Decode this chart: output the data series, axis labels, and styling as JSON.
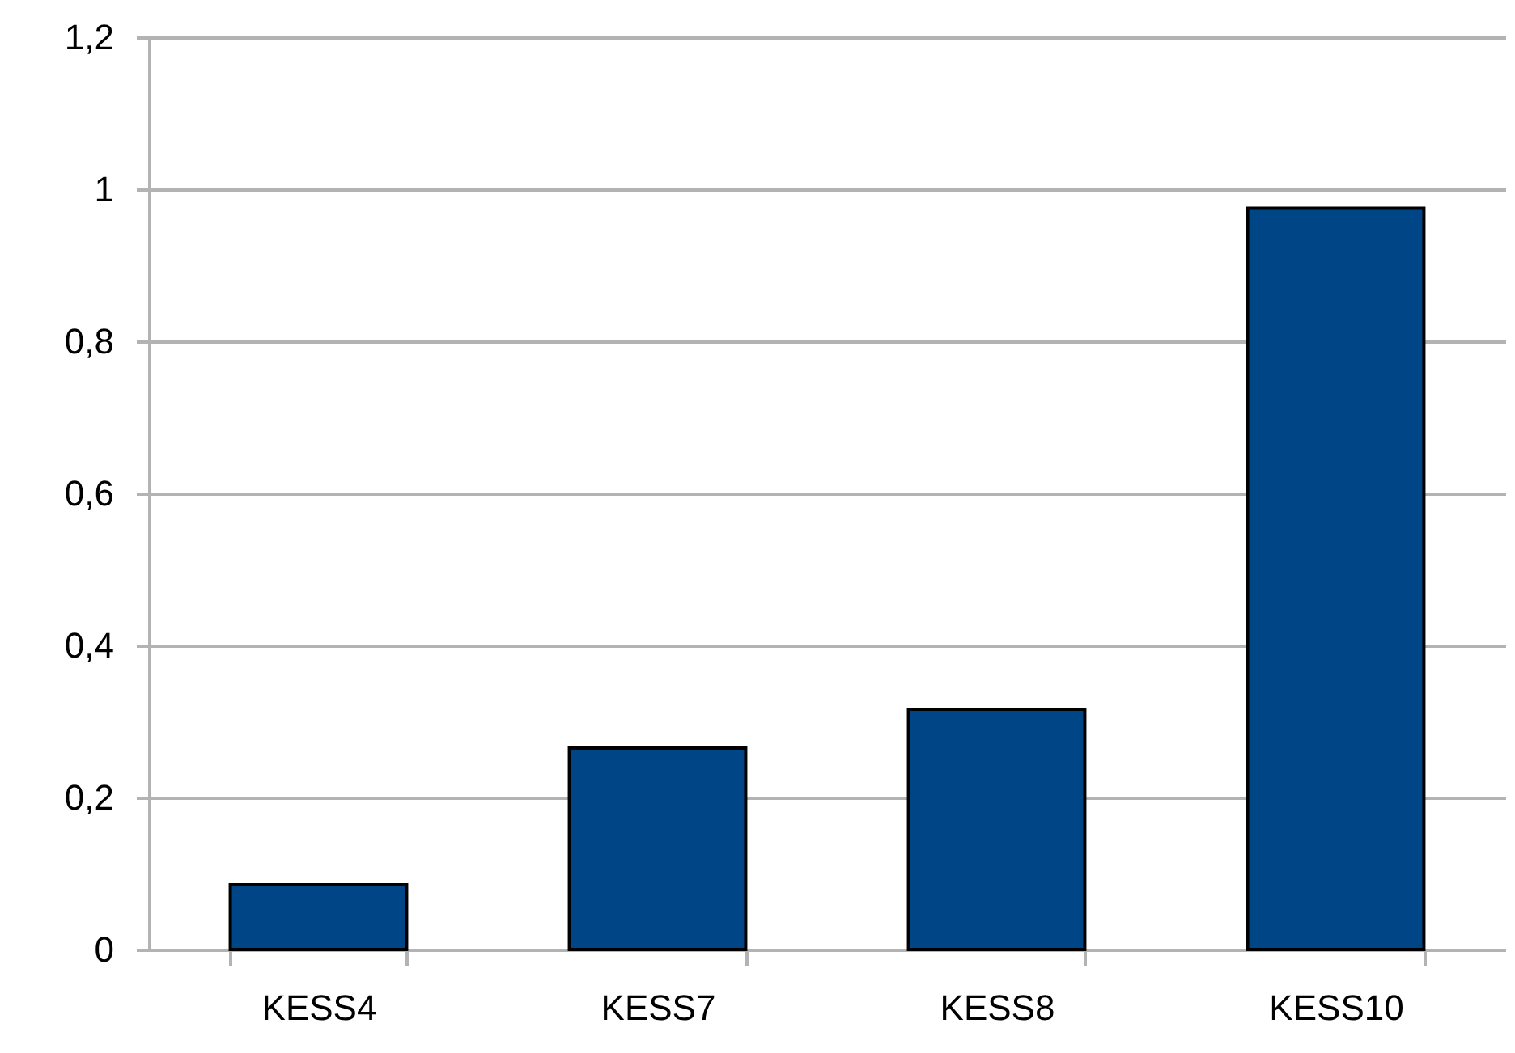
{
  "chart_data": {
    "type": "bar",
    "categories": [
      "KESS4",
      "KESS7",
      "KESS8",
      "KESS10"
    ],
    "values": [
      0.085,
      0.265,
      0.316,
      0.975
    ],
    "color": "#004586",
    "ylim": [
      0,
      1.2
    ],
    "yticks": [
      0,
      {
        "value": 0.2,
        "label": "0,2"
      },
      {
        "value": 0.4,
        "label": "0,4"
      },
      {
        "value": 0.6,
        "label": "0,6"
      },
      {
        "value": 0.8,
        "label": "0,8"
      },
      1,
      {
        "value": 1.2,
        "label": "1,2"
      }
    ],
    "grid": "y"
  }
}
